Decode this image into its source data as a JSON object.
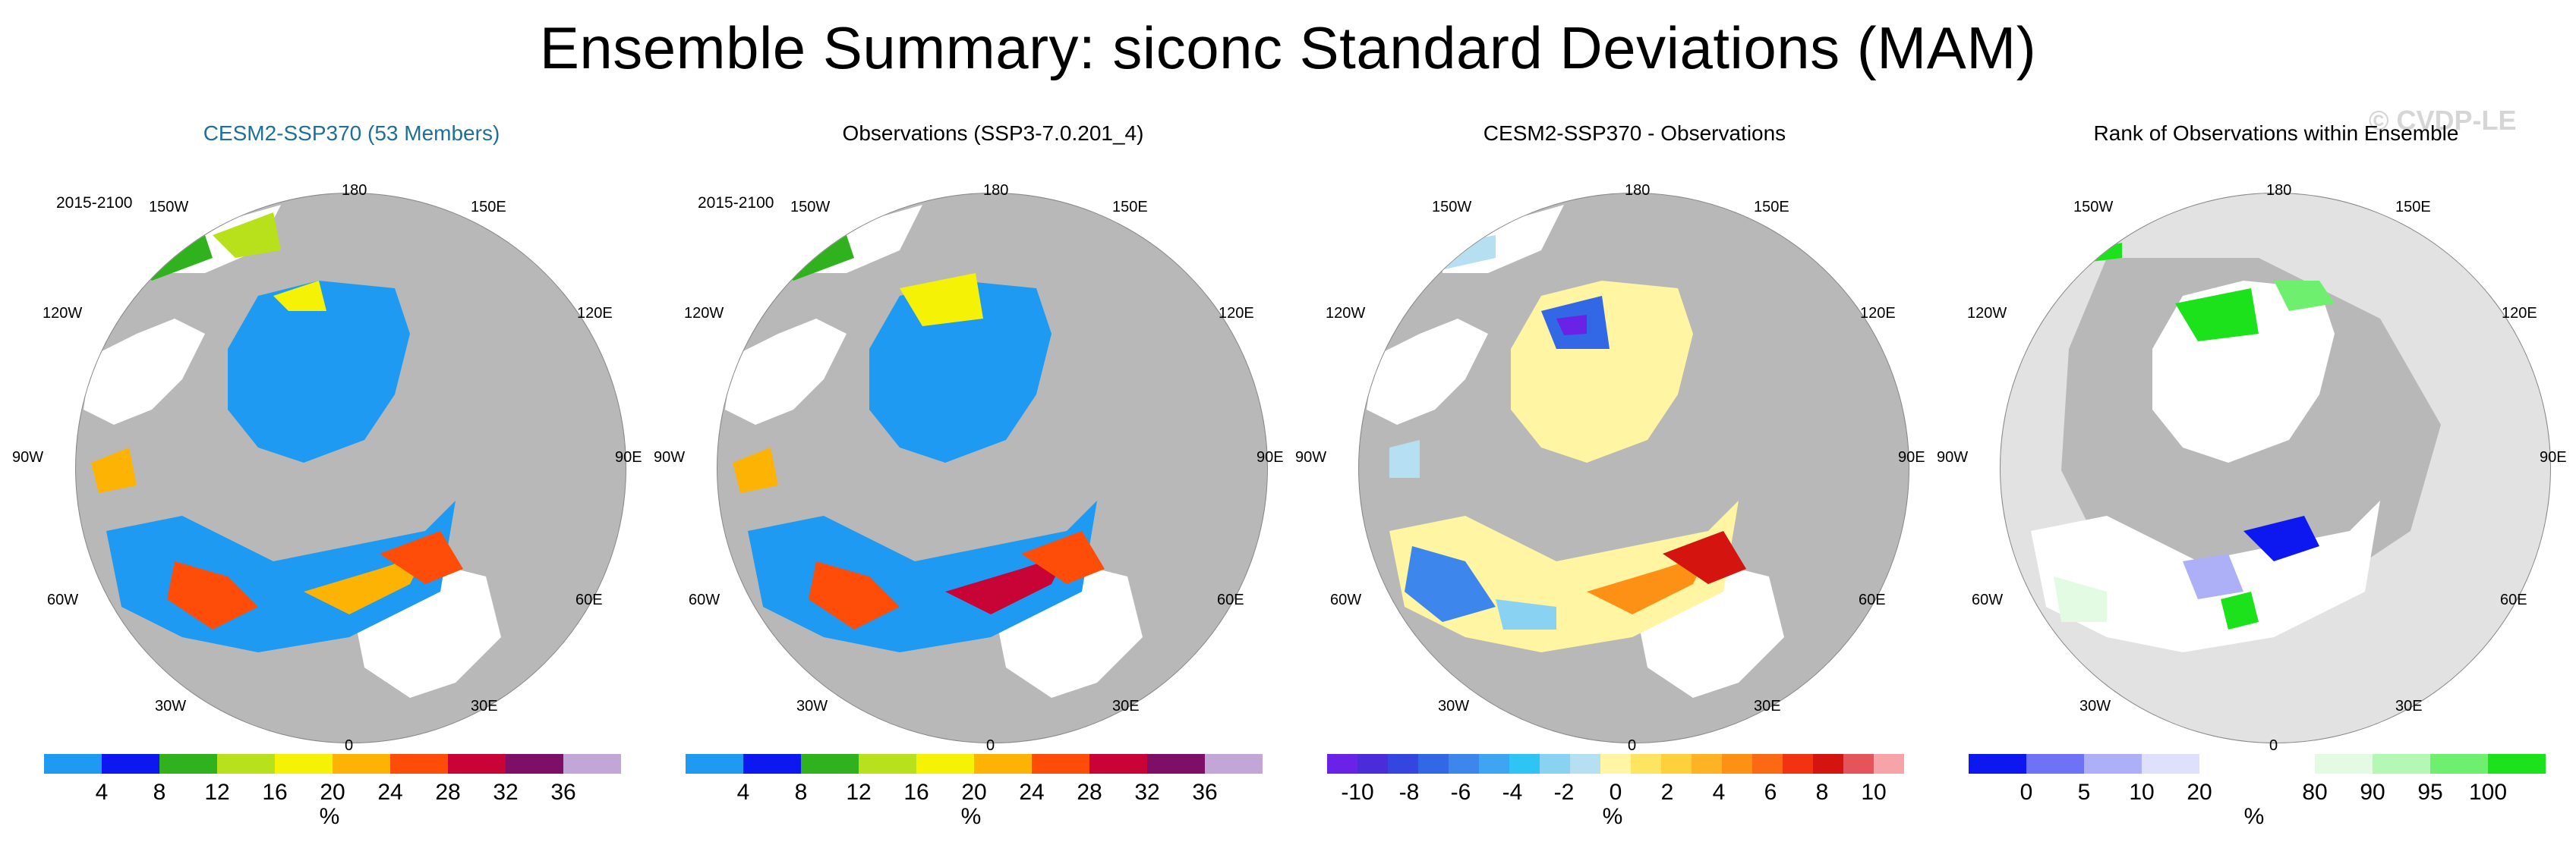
{
  "title": "Ensemble Summary: siconc Standard Deviations (MAM)",
  "watermark": "© CVDP-LE",
  "lon_labels": {
    "top": "180",
    "bottom": "0",
    "w150": "150W",
    "e150": "150E",
    "w120": "120W",
    "e120": "120E",
    "w90": "90W",
    "e90": "90E",
    "w60": "60W",
    "e60": "60E",
    "w30": "30W",
    "e30": "30E"
  },
  "panels": [
    {
      "title": "CESM2-SSP370 (53 Members)",
      "period": "2015-2100",
      "colorbar": {
        "colors": [
          "#1e9af2",
          "#0d17f0",
          "#2fb21d",
          "#b8e01b",
          "#f5f205",
          "#fdb303",
          "#fd4d08",
          "#c80436",
          "#7e0f67",
          "#c2a6d7"
        ],
        "labels": [
          "4",
          "8",
          "12",
          "16",
          "20",
          "24",
          "28",
          "32",
          "36"
        ],
        "unit": "%"
      }
    },
    {
      "title": "Observations (SSP3-7.0.201_4)",
      "period": "2015-2100",
      "colorbar": {
        "colors": [
          "#1e9af2",
          "#0d17f0",
          "#2fb21d",
          "#b8e01b",
          "#f5f205",
          "#fdb303",
          "#fd4d08",
          "#c80436",
          "#7e0f67",
          "#c2a6d7"
        ],
        "labels": [
          "4",
          "8",
          "12",
          "16",
          "20",
          "24",
          "28",
          "32",
          "36"
        ],
        "unit": "%"
      }
    },
    {
      "title": "CESM2-SSP370 - Observations",
      "period": "",
      "colorbar": {
        "colors": [
          "#6a22e6",
          "#4b2cd9",
          "#3545e0",
          "#3267e6",
          "#3c86ec",
          "#3fa4f2",
          "#2ec4f4",
          "#89d2f2",
          "#b7dff2",
          "#fff5a3",
          "#fde561",
          "#fdd03c",
          "#fdb323",
          "#fd9115",
          "#fb6a12",
          "#f1340f",
          "#d4140f",
          "#e5535b",
          "#f7a4a8"
        ],
        "labels": [
          "-10",
          "-8",
          "-6",
          "-4",
          "-2",
          "0",
          "2",
          "4",
          "6",
          "8",
          "10"
        ],
        "unit": "%"
      }
    },
    {
      "title": "Rank of Observations within Ensemble",
      "period": "",
      "colorbar": {
        "colors": [
          "#0d17f0",
          "#6e73f6",
          "#aeb0f7",
          "#dfe0fb",
          "#ffffff",
          "#ffffff",
          "#e3fbe3",
          "#b5f7b5",
          "#6ef06e",
          "#1ce21c"
        ],
        "labels": [
          "0",
          "5",
          "10",
          "20",
          "80",
          "90",
          "95",
          "100"
        ],
        "unit": "%"
      }
    }
  ]
}
